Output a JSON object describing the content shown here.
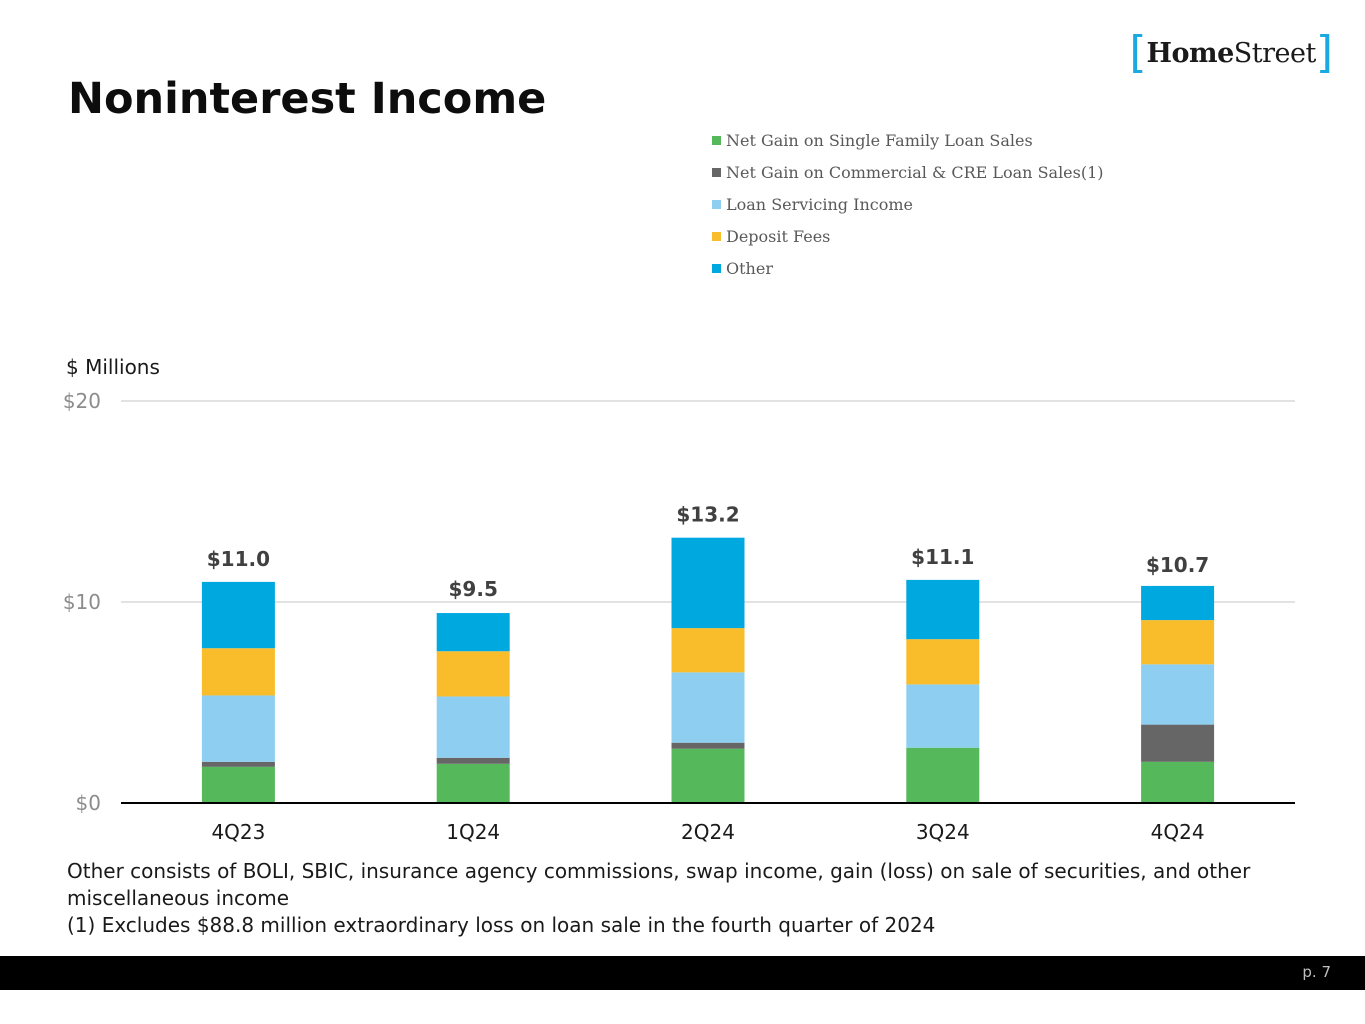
{
  "logo": {
    "left_bracket": "[",
    "word_home": "Home",
    "word_street": "Street",
    "right_bracket": "]"
  },
  "page_title": "Noninterest Income",
  "units_label": "$ Millions",
  "footnotes": [
    "Other consists of BOLI, SBIC, insurance agency commissions, swap income, gain (loss) on sale of securities, and other miscellaneous income",
    "(1) Excludes $88.8 million extraordinary loss on loan sale in the fourth quarter of 2024"
  ],
  "page_number": "p. 7",
  "chart_data": {
    "type": "bar",
    "stacked": true,
    "title": "Noninterest Income",
    "ylabel": "$ Millions",
    "ylim": [
      0,
      20
    ],
    "yticks": [
      0,
      10,
      20
    ],
    "ytick_labels": [
      "$0",
      "$10",
      "$20"
    ],
    "grid": true,
    "legend_position": "top-right",
    "categories": [
      "4Q23",
      "1Q24",
      "2Q24",
      "3Q24",
      "4Q24"
    ],
    "series": [
      {
        "name": "Net Gain on Single Family Loan Sales",
        "color": "#55b85b",
        "values": [
          1.8,
          1.95,
          2.7,
          2.75,
          2.05
        ]
      },
      {
        "name": "Net Gain on Commercial & CRE Loan Sales(1)",
        "color": "#666666",
        "values": [
          0.25,
          0.3,
          0.3,
          0.0,
          1.85
        ]
      },
      {
        "name": "Loan Servicing Income",
        "color": "#8ecff1",
        "values": [
          3.3,
          3.05,
          3.5,
          3.15,
          3.0
        ]
      },
      {
        "name": "Deposit Fees",
        "color": "#f9bd2c",
        "values": [
          2.35,
          2.25,
          2.2,
          2.25,
          2.2
        ]
      },
      {
        "name": "Other",
        "color": "#00a8e0",
        "values": [
          3.3,
          1.9,
          4.5,
          2.95,
          1.7
        ]
      }
    ],
    "totals": [
      11.0,
      9.5,
      13.2,
      11.1,
      10.7
    ],
    "total_labels": [
      "$11.0",
      "$9.5",
      "$13.2",
      "$11.1",
      "$10.7"
    ]
  }
}
